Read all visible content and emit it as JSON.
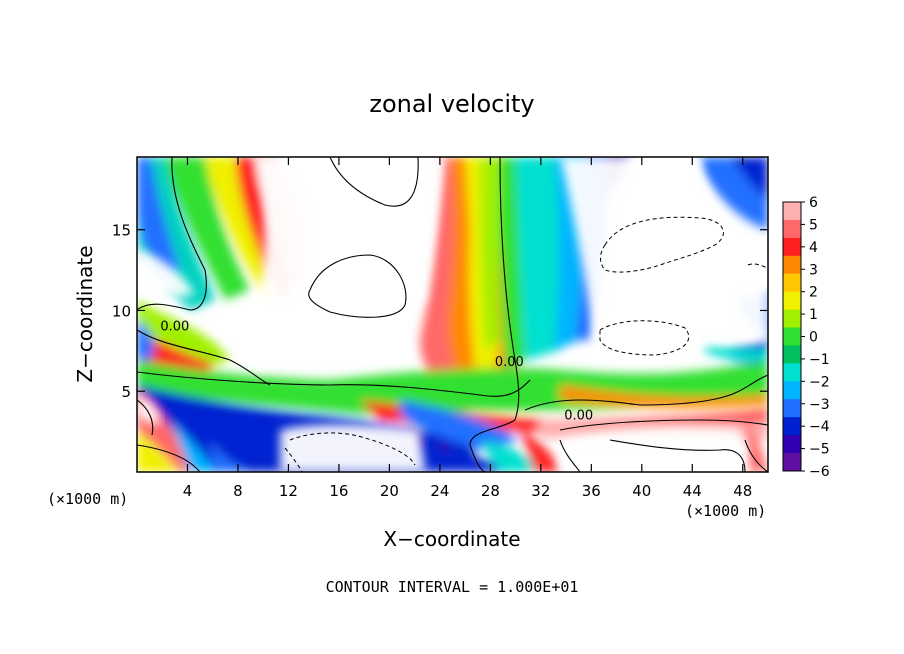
{
  "chart_data": {
    "type": "heatmap",
    "title": "zonal velocity",
    "xlabel": "X−coordinate",
    "ylabel": "Z−coordinate",
    "x_units_left": "(×1000 m)",
    "x_units_right": "(×1000 m)",
    "footer": "CONTOUR INTERVAL = 1.000E+01",
    "xlim": [
      0,
      50
    ],
    "ylim": [
      0,
      19.5
    ],
    "x_ticks": [
      "4",
      "8",
      "12",
      "16",
      "20",
      "24",
      "28",
      "32",
      "36",
      "40",
      "44",
      "48"
    ],
    "x_tick_values": [
      4,
      8,
      12,
      16,
      20,
      24,
      28,
      32,
      36,
      40,
      44,
      48
    ],
    "y_ticks": [
      "5",
      "10",
      "15"
    ],
    "y_tick_values": [
      5,
      10,
      15
    ],
    "colorbar": {
      "min": -6,
      "max": 6,
      "tick_labels": [
        "6",
        "5",
        "4",
        "3",
        "2",
        "1",
        "0",
        "−1",
        "−2",
        "−3",
        "−4",
        "−5",
        "−6"
      ],
      "colors": [
        "#ffb0b0",
        "#ff6868",
        "#ff2020",
        "#ff8800",
        "#ffc800",
        "#f0f000",
        "#a0f000",
        "#30e030",
        "#00c060",
        "#00e0d0",
        "#00b4ff",
        "#2070ff",
        "#0020d0",
        "#3000b0",
        "#6010a0"
      ]
    },
    "contour_labels": [
      {
        "text": "0.00",
        "x": 3,
        "z": 9.0
      },
      {
        "text": "0.00",
        "x": 29.5,
        "z": 6.8
      },
      {
        "text": "0.00",
        "x": 35.0,
        "z": 3.5
      }
    ],
    "grid": false,
    "legend": "colorbar-right"
  }
}
